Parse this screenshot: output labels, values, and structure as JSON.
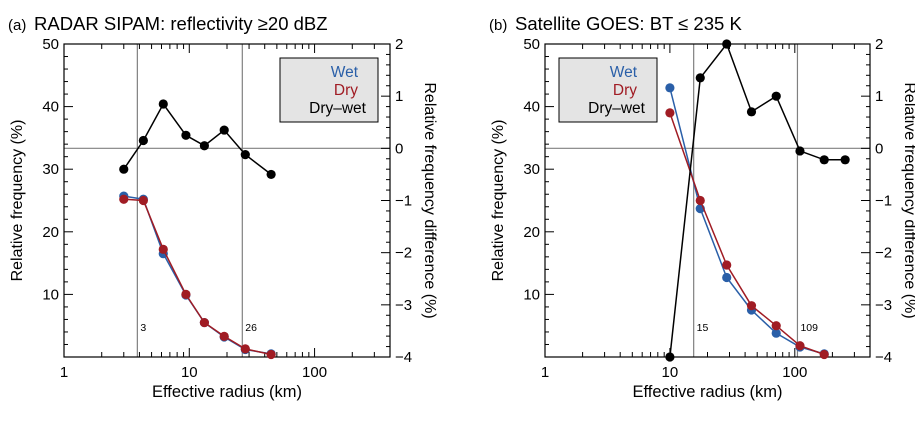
{
  "colors": {
    "wet": "#2a5fa8",
    "dry": "#a01c24",
    "diff": "#000000",
    "legend_bg": "#e4e4e4",
    "vline": "#808080"
  },
  "chart_data": [
    {
      "type": "line",
      "panel_label": "(a)",
      "title": "RADAR SIPAM: reflectivity ≥20 dBZ",
      "xlabel": "Effective radius  (km)",
      "ylabel": "Relative frequency (%)",
      "y2label": "Relative frequency difference (%)",
      "xscale": "log",
      "xlim": [
        1,
        400
      ],
      "ylim": [
        0,
        50
      ],
      "y2lim": [
        -4,
        2
      ],
      "xticks": [
        1,
        10,
        100
      ],
      "xtick_labels": [
        "1",
        "10",
        "100"
      ],
      "yticks": [
        10,
        20,
        30,
        40,
        50
      ],
      "ytick_labels": [
        "10",
        "20",
        "30",
        "40",
        "50"
      ],
      "y2ticks": [
        -4,
        -3,
        -2,
        -1,
        0,
        1,
        2
      ],
      "y2tick_labels": [
        "−4",
        "−3",
        "−2",
        "−1",
        "0",
        "1",
        "2"
      ],
      "hline_y2": 0,
      "vlines": [
        {
          "x": 3.85,
          "label": "3"
        },
        {
          "x": 26.5,
          "label": "26"
        }
      ],
      "legend": {
        "position": "top-right",
        "entries": [
          "Wet",
          "Dry",
          "Dry–wet"
        ]
      },
      "series": [
        {
          "name": "Wet",
          "axis": "left",
          "x": [
            3,
            4.3,
            6.2,
            9.4,
            13.2,
            19,
            28,
            45
          ],
          "y": [
            25.7,
            25.2,
            16.5,
            9.9,
            5.5,
            3.2,
            1.2,
            0.5
          ]
        },
        {
          "name": "Dry",
          "axis": "left",
          "x": [
            3,
            4.3,
            6.2,
            9.4,
            13.2,
            19,
            28,
            45
          ],
          "y": [
            25.2,
            25.0,
            17.2,
            10.0,
            5.5,
            3.3,
            1.3,
            0.4
          ]
        },
        {
          "name": "Dry–wet",
          "axis": "right",
          "x": [
            3,
            4.3,
            6.2,
            9.4,
            13.2,
            19,
            28,
            45
          ],
          "y": [
            -0.4,
            0.15,
            0.85,
            0.25,
            0.05,
            0.35,
            -0.12,
            -0.5
          ]
        }
      ]
    },
    {
      "type": "line",
      "panel_label": "(b)",
      "title": "Satellite GOES: BT ≤ 235 K",
      "xlabel": "Effective radius  (km)",
      "ylabel": "Relative frequency (%)",
      "y2label": "Relative frequency difference (%)",
      "xscale": "log",
      "xlim": [
        1,
        400
      ],
      "ylim": [
        0,
        50
      ],
      "y2lim": [
        -4,
        2
      ],
      "xticks": [
        1,
        10,
        100
      ],
      "xtick_labels": [
        "1",
        "10",
        "100"
      ],
      "yticks": [
        10,
        20,
        30,
        40,
        50
      ],
      "ytick_labels": [
        "10",
        "20",
        "30",
        "40",
        "50"
      ],
      "y2ticks": [
        -4,
        -3,
        -2,
        -1,
        0,
        1,
        2
      ],
      "y2tick_labels": [
        "−4",
        "−3",
        "−2",
        "−1",
        "0",
        "1",
        "2"
      ],
      "hline_y2": 0,
      "vlines": [
        {
          "x": 15.5,
          "label": "15"
        },
        {
          "x": 105,
          "label": "109"
        }
      ],
      "legend": {
        "position": "top-left",
        "entries": [
          "Wet",
          "Dry",
          "Dry–wet"
        ]
      },
      "series": [
        {
          "name": "Wet",
          "axis": "left",
          "x": [
            10,
            17.5,
            28.5,
            45,
            71,
            110,
            172
          ],
          "y": [
            43.0,
            23.7,
            12.7,
            7.5,
            3.8,
            1.6,
            0.5
          ]
        },
        {
          "name": "Dry",
          "axis": "left",
          "x": [
            10,
            17.5,
            28.5,
            45,
            71,
            110,
            172
          ],
          "y": [
            39.0,
            25.0,
            14.7,
            8.2,
            5.0,
            1.8,
            0.4
          ]
        },
        {
          "name": "Dry–wet",
          "axis": "right",
          "x": [
            10,
            17.5,
            28.5,
            45,
            71,
            110,
            172,
            253
          ],
          "y": [
            -4.0,
            1.35,
            2.0,
            0.7,
            1.0,
            -0.05,
            -0.22,
            -0.22
          ]
        }
      ]
    }
  ]
}
